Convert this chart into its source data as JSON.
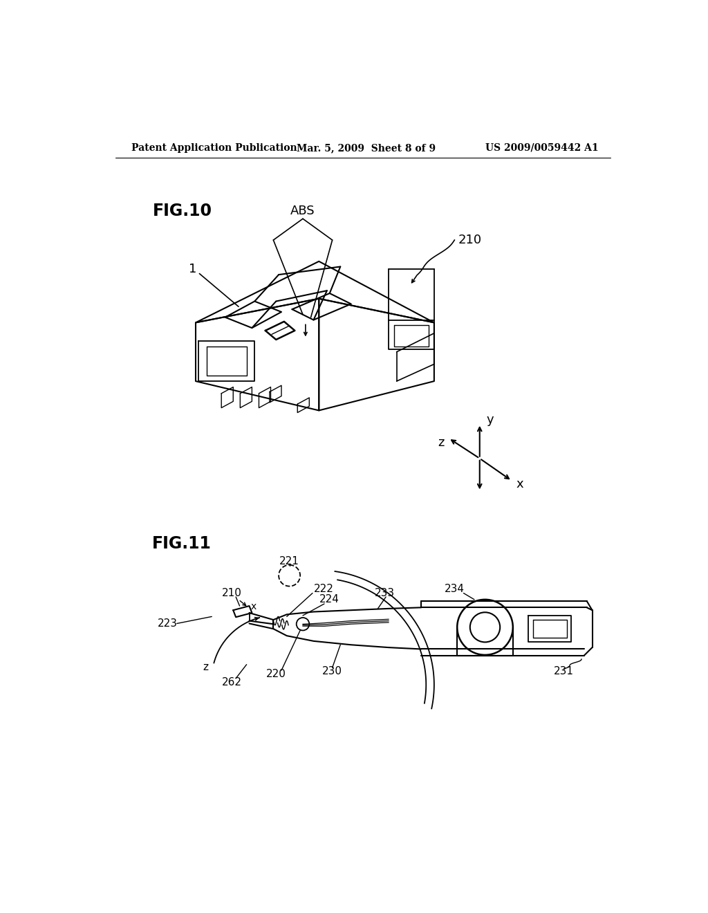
{
  "background_color": "#ffffff",
  "header_left": "Patent Application Publication",
  "header_mid": "Mar. 5, 2009  Sheet 8 of 9",
  "header_right": "US 2009/0059442 A1",
  "fig10_label": "FIG.10",
  "fig11_label": "FIG.11",
  "label_ABS": "ABS",
  "label_210_fig10": "210",
  "label_1": "1",
  "label_221": "221",
  "label_222": "222",
  "label_223": "223",
  "label_224": "224",
  "label_210_fig11": "210",
  "label_220": "220",
  "label_230": "230",
  "label_231": "231",
  "label_233": "233",
  "label_234": "234",
  "label_262": "262",
  "label_x": "x",
  "label_y": "y",
  "label_z": "z",
  "line_color": "#000000",
  "text_color": "#000000"
}
